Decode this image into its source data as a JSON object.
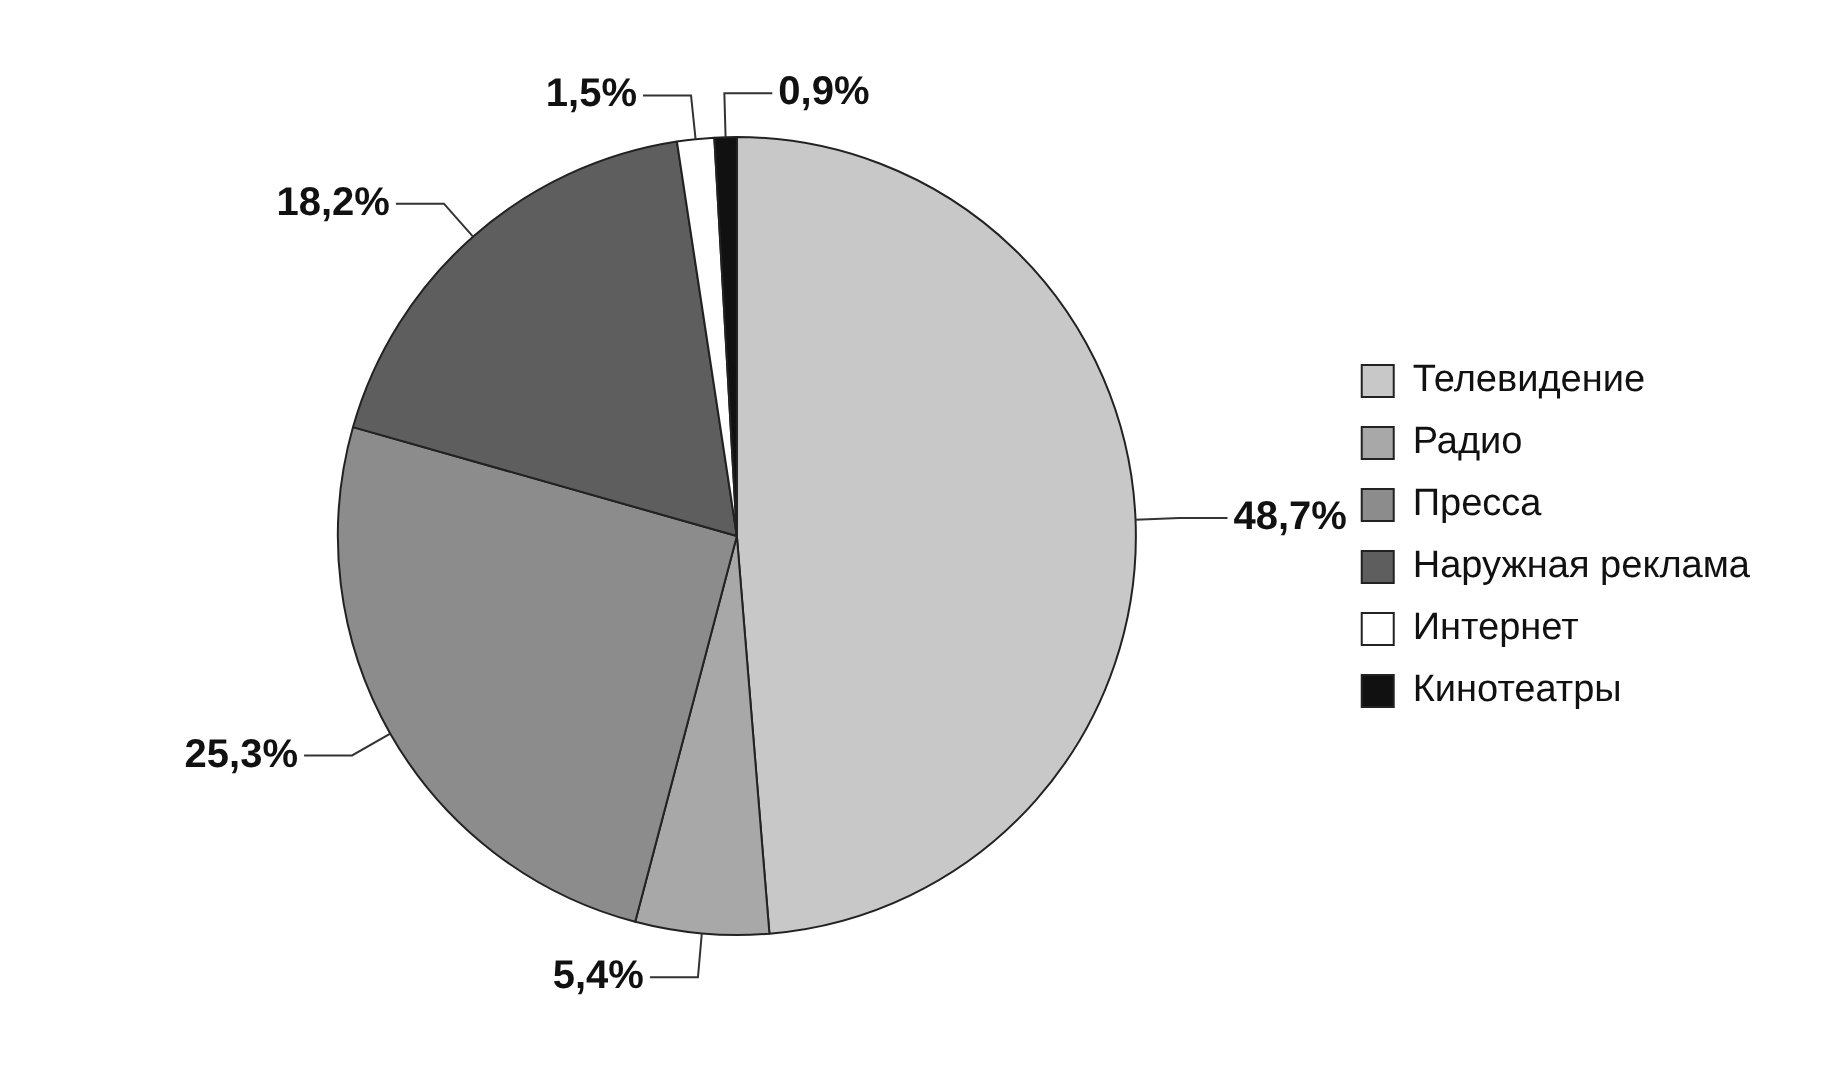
{
  "chart_data": {
    "type": "pie",
    "categories": [
      "Телевидение",
      "Радио",
      "Пресса",
      "Наружная реклама",
      "Интернет",
      "Кинотеатры"
    ],
    "values": [
      48.7,
      5.4,
      25.3,
      18.2,
      1.5,
      0.9
    ],
    "colors": [
      "#c8c8c8",
      "#a8a8a8",
      "#8c8c8c",
      "#5e5e5e",
      "#ffffff",
      "#111111"
    ],
    "value_labels": [
      "48,7%",
      "5,4%",
      "25,3%",
      "18,2%",
      "1,5%",
      "0,9%"
    ],
    "legend": "right"
  }
}
